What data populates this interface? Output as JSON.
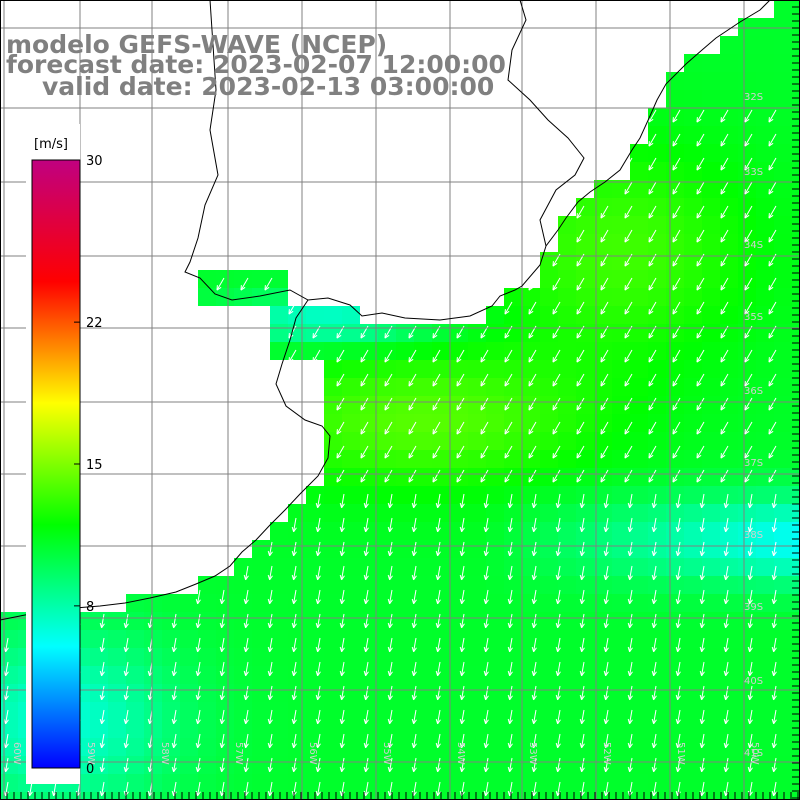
{
  "title": {
    "model": "modelo GEFS-WAVE (NCEP)",
    "forecast": "forecast date: 2023-02-07 12:00:00",
    "valid": "valid date: 2023-02-13 03:00:00"
  },
  "colorbar": {
    "unit_label": "[m/s]",
    "min": 0,
    "max": 30,
    "ticks": [
      {
        "value": 30,
        "label": "30"
      },
      {
        "value": 22,
        "label": "22"
      },
      {
        "value": 15,
        "label": "15"
      },
      {
        "value": 8,
        "label": "8"
      },
      {
        "value": 0,
        "label": "0"
      }
    ],
    "colors": [
      "#0000ff",
      "#00ffff",
      "#00ff00",
      "#ffff00",
      "#ff0000",
      "#c00080"
    ]
  },
  "map": {
    "land_color": "#ffffff",
    "grid_color": "#808080",
    "coast_color": "#000000",
    "arrow_color": "#ffffff",
    "arrow_direction": "from NE toward SW",
    "lat_labels": [
      "32S",
      "33S",
      "34S",
      "35S",
      "36S",
      "37S",
      "38S",
      "39S",
      "40S",
      "41S"
    ],
    "lon_labels": [
      "60W",
      "59W",
      "58W",
      "57W",
      "56W",
      "55W",
      "54W",
      "53W",
      "52W",
      "51W",
      "50W"
    ]
  }
}
